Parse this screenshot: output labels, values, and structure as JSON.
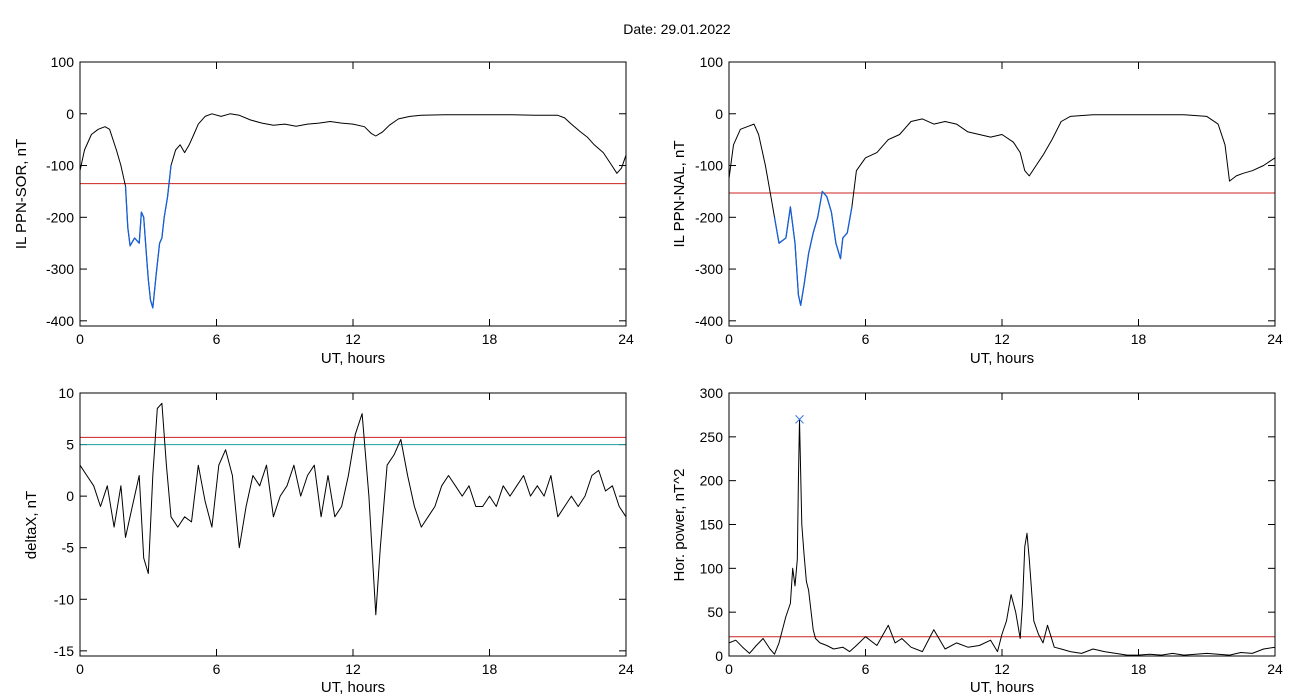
{
  "title": "Date:  29.01.2022",
  "colors": {
    "line": "#000000",
    "threshold": "#cc2222",
    "highlight": "#1560d8",
    "threshold2": "#18a0a0",
    "marker": "#2b6fd6"
  },
  "chart_data": [
    {
      "type": "line",
      "xlabel": "UT, hours",
      "ylabel": "IL PPN-SOR, nT",
      "xlim": [
        0,
        24
      ],
      "ylim": [
        -410,
        100
      ],
      "xticks": [
        0,
        6,
        12,
        18,
        24
      ],
      "yticks": [
        100,
        0,
        -100,
        -200,
        -300,
        -400
      ],
      "threshold": -135,
      "highlight_range": [
        2.0,
        4.0
      ],
      "x": [
        0,
        0.2,
        0.5,
        0.8,
        1.1,
        1.3,
        1.6,
        1.8,
        2.0,
        2.1,
        2.2,
        2.4,
        2.6,
        2.7,
        2.8,
        2.95,
        3.0,
        3.1,
        3.2,
        3.35,
        3.5,
        3.6,
        3.7,
        3.85,
        4.0,
        4.2,
        4.4,
        4.6,
        4.8,
        5.0,
        5.2,
        5.5,
        5.8,
        6.2,
        6.6,
        7.0,
        7.5,
        8.0,
        8.5,
        9.0,
        9.5,
        10.0,
        10.5,
        11.0,
        11.5,
        12.0,
        12.5,
        12.8,
        13.0,
        13.3,
        13.6,
        14.0,
        14.5,
        15.0,
        16.0,
        17.0,
        18.0,
        19.0,
        20.0,
        20.5,
        21.0,
        21.3,
        21.6,
        22.0,
        22.3,
        22.6,
        23.0,
        23.3,
        23.6,
        23.8,
        24.0
      ],
      "y": [
        -110,
        -70,
        -40,
        -30,
        -25,
        -30,
        -70,
        -100,
        -140,
        -220,
        -255,
        -240,
        -250,
        -190,
        -200,
        -290,
        -320,
        -360,
        -375,
        -310,
        -250,
        -240,
        -200,
        -160,
        -100,
        -70,
        -60,
        -75,
        -60,
        -40,
        -20,
        -5,
        0,
        -5,
        0,
        -3,
        -12,
        -18,
        -22,
        -20,
        -24,
        -20,
        -18,
        -15,
        -18,
        -20,
        -25,
        -38,
        -43,
        -35,
        -22,
        -10,
        -5,
        -3,
        -2,
        -2,
        -2,
        -2,
        -3,
        -3,
        -3,
        -8,
        -20,
        -35,
        -45,
        -60,
        -75,
        -95,
        -115,
        -105,
        -80
      ]
    },
    {
      "type": "line",
      "xlabel": "UT, hours",
      "ylabel": "IL PPN-NAL, nT",
      "xlim": [
        0,
        24
      ],
      "ylim": [
        -410,
        100
      ],
      "xticks": [
        0,
        6,
        12,
        18,
        24
      ],
      "yticks": [
        100,
        0,
        -100,
        -200,
        -300,
        -400
      ],
      "threshold": -153,
      "highlight_range": [
        2.0,
        5.5
      ],
      "x": [
        0,
        0.2,
        0.5,
        0.8,
        1.1,
        1.3,
        1.6,
        1.8,
        2.0,
        2.2,
        2.5,
        2.7,
        2.9,
        3.05,
        3.15,
        3.3,
        3.5,
        3.7,
        3.9,
        4.1,
        4.3,
        4.5,
        4.7,
        4.9,
        5.0,
        5.2,
        5.4,
        5.6,
        6.0,
        6.5,
        7.0,
        7.5,
        8.0,
        8.5,
        9.0,
        9.5,
        10.0,
        10.5,
        11.0,
        11.5,
        12.0,
        12.5,
        12.8,
        13.0,
        13.2,
        13.5,
        13.8,
        14.2,
        14.6,
        15.0,
        16.0,
        17.0,
        18.0,
        19.0,
        20.0,
        21.0,
        21.5,
        21.8,
        22.0,
        22.3,
        22.6,
        23.0,
        23.5,
        24.0
      ],
      "y": [
        -125,
        -60,
        -30,
        -25,
        -20,
        -40,
        -100,
        -150,
        -200,
        -250,
        -240,
        -180,
        -250,
        -350,
        -370,
        -330,
        -270,
        -230,
        -200,
        -150,
        -160,
        -190,
        -250,
        -280,
        -240,
        -230,
        -180,
        -110,
        -85,
        -75,
        -50,
        -40,
        -15,
        -10,
        -20,
        -15,
        -20,
        -35,
        -40,
        -45,
        -40,
        -55,
        -75,
        -110,
        -120,
        -100,
        -80,
        -50,
        -15,
        -5,
        -2,
        -2,
        -2,
        -2,
        -2,
        -5,
        -20,
        -60,
        -130,
        -120,
        -115,
        -110,
        -100,
        -85
      ]
    },
    {
      "type": "line",
      "xlabel": "UT, hours",
      "ylabel": "deltaX, nT",
      "xlim": [
        0,
        24
      ],
      "ylim": [
        -15.5,
        10
      ],
      "xticks": [
        0,
        6,
        12,
        18,
        24
      ],
      "yticks": [
        10,
        5,
        0,
        -5,
        -10,
        -15
      ],
      "threshold": 5.7,
      "threshold2": 5.0,
      "x": [
        0,
        0.3,
        0.6,
        0.9,
        1.2,
        1.5,
        1.8,
        2.0,
        2.3,
        2.6,
        2.8,
        3.0,
        3.2,
        3.4,
        3.6,
        3.8,
        4.0,
        4.3,
        4.6,
        4.9,
        5.2,
        5.5,
        5.8,
        6.1,
        6.4,
        6.7,
        7.0,
        7.3,
        7.6,
        7.9,
        8.2,
        8.5,
        8.8,
        9.1,
        9.4,
        9.7,
        10.0,
        10.3,
        10.6,
        10.9,
        11.2,
        11.5,
        11.8,
        12.1,
        12.4,
        12.7,
        13.0,
        13.2,
        13.5,
        13.8,
        14.1,
        14.4,
        14.7,
        15.0,
        15.3,
        15.6,
        15.9,
        16.2,
        16.5,
        16.8,
        17.1,
        17.4,
        17.7,
        18.0,
        18.3,
        18.6,
        18.9,
        19.2,
        19.5,
        19.8,
        20.1,
        20.4,
        20.7,
        21.0,
        21.3,
        21.6,
        21.9,
        22.2,
        22.5,
        22.8,
        23.1,
        23.4,
        23.7,
        24.0
      ],
      "y": [
        3,
        2,
        1,
        -1,
        1,
        -3,
        1,
        -4,
        -1,
        2,
        -6,
        -7.5,
        2,
        8.5,
        9,
        3,
        -2,
        -3,
        -2,
        -2.5,
        3,
        -0.5,
        -3,
        3,
        4.5,
        2,
        -5,
        -1,
        2,
        1,
        3,
        -2,
        0,
        1,
        3,
        0,
        2,
        3,
        -2,
        2,
        -2,
        -1,
        2,
        6,
        8,
        0,
        -11.5,
        -5,
        3,
        4,
        5.5,
        2,
        -1,
        -3,
        -2,
        -1,
        1,
        2,
        1,
        0,
        1,
        -1,
        -1,
        0,
        -1,
        1,
        0,
        1,
        2,
        0,
        1,
        0,
        2,
        -2,
        -1,
        0,
        -1,
        0,
        2,
        2.5,
        0.5,
        1,
        -1,
        -2
      ]
    },
    {
      "type": "line",
      "xlabel": "UT, hours",
      "ylabel": "Hor. power, nT^2",
      "xlim": [
        0,
        24
      ],
      "ylim": [
        0,
        300
      ],
      "xticks": [
        0,
        6,
        12,
        18,
        24
      ],
      "yticks": [
        300,
        250,
        200,
        150,
        100,
        50,
        0
      ],
      "threshold": 22,
      "peak_marker": {
        "x": 3.1,
        "y": 270
      },
      "x": [
        0,
        0.3,
        0.6,
        0.9,
        1.2,
        1.5,
        1.8,
        2.0,
        2.2,
        2.5,
        2.7,
        2.8,
        2.9,
        3.0,
        3.05,
        3.1,
        3.2,
        3.3,
        3.4,
        3.5,
        3.7,
        3.8,
        4.0,
        4.3,
        4.6,
        5.0,
        5.3,
        5.6,
        6.0,
        6.5,
        7.0,
        7.3,
        7.6,
        8.0,
        8.5,
        9.0,
        9.5,
        10.0,
        10.5,
        11.0,
        11.5,
        11.8,
        12.0,
        12.2,
        12.4,
        12.6,
        12.8,
        12.9,
        13.0,
        13.1,
        13.2,
        13.4,
        13.6,
        13.8,
        14.0,
        14.3,
        14.6,
        15.0,
        15.5,
        16.0,
        16.5,
        17.0,
        17.5,
        18.0,
        18.5,
        19.0,
        19.5,
        20.0,
        20.5,
        21.0,
        21.5,
        22.0,
        22.5,
        23.0,
        23.5,
        24.0
      ],
      "y": [
        15,
        18,
        10,
        3,
        12,
        20,
        8,
        2,
        15,
        45,
        60,
        100,
        80,
        110,
        200,
        270,
        150,
        115,
        85,
        75,
        30,
        20,
        15,
        12,
        8,
        10,
        5,
        12,
        22,
        12,
        35,
        15,
        20,
        10,
        5,
        30,
        8,
        15,
        10,
        12,
        18,
        5,
        25,
        40,
        70,
        50,
        20,
        60,
        125,
        140,
        110,
        40,
        25,
        15,
        35,
        10,
        8,
        5,
        3,
        8,
        5,
        3,
        1,
        1,
        2,
        1,
        3,
        1,
        2,
        3,
        2,
        1,
        4,
        3,
        8,
        10
      ]
    }
  ]
}
